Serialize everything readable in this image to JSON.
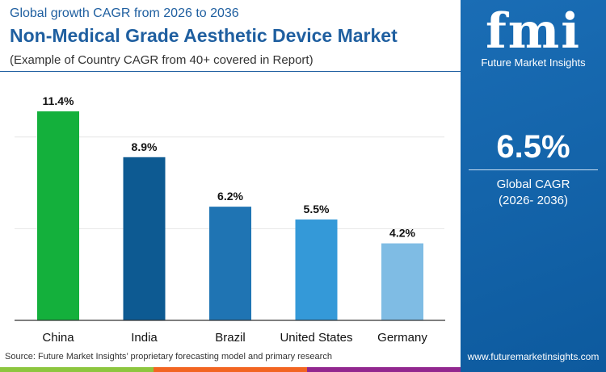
{
  "header": {
    "subtitle_top": "Global growth CAGR from 2026 to 2036",
    "title": "Non-Medical Grade Aesthetic Device Market",
    "note": "(Example of Country CAGR from 40+ covered in Report)"
  },
  "source": "Source: Future Market Insights’ proprietary forecasting model and primary research",
  "panel": {
    "logo_text": "fmi",
    "logo_sub": "Future Market Insights",
    "cagr_value": "6.5%",
    "cagr_label": "Global CAGR",
    "cagr_period": "(2026- 2036)",
    "url": "www.futuremarketinsights.com"
  },
  "colors": {
    "brand": "#1f5fa0",
    "bottom_bar": [
      "#8dc63f",
      "#f26522",
      "#92278f",
      "#0d5a9e"
    ]
  },
  "chart_data": {
    "type": "bar",
    "categories": [
      "China",
      "India",
      "Brazil",
      "United States",
      "Germany"
    ],
    "values": [
      11.4,
      8.9,
      6.2,
      5.5,
      4.2
    ],
    "data_labels": [
      "11.4%",
      "8.9%",
      "6.2%",
      "5.5%",
      "4.2%"
    ],
    "bar_colors": [
      "#14b03c",
      "#0d5a92",
      "#1f74b3",
      "#3499d8",
      "#7fbce4"
    ],
    "ylim": [
      0,
      12.5
    ],
    "grid": true,
    "gridlines": [
      5,
      10
    ],
    "xlabel": "",
    "ylabel": ""
  }
}
